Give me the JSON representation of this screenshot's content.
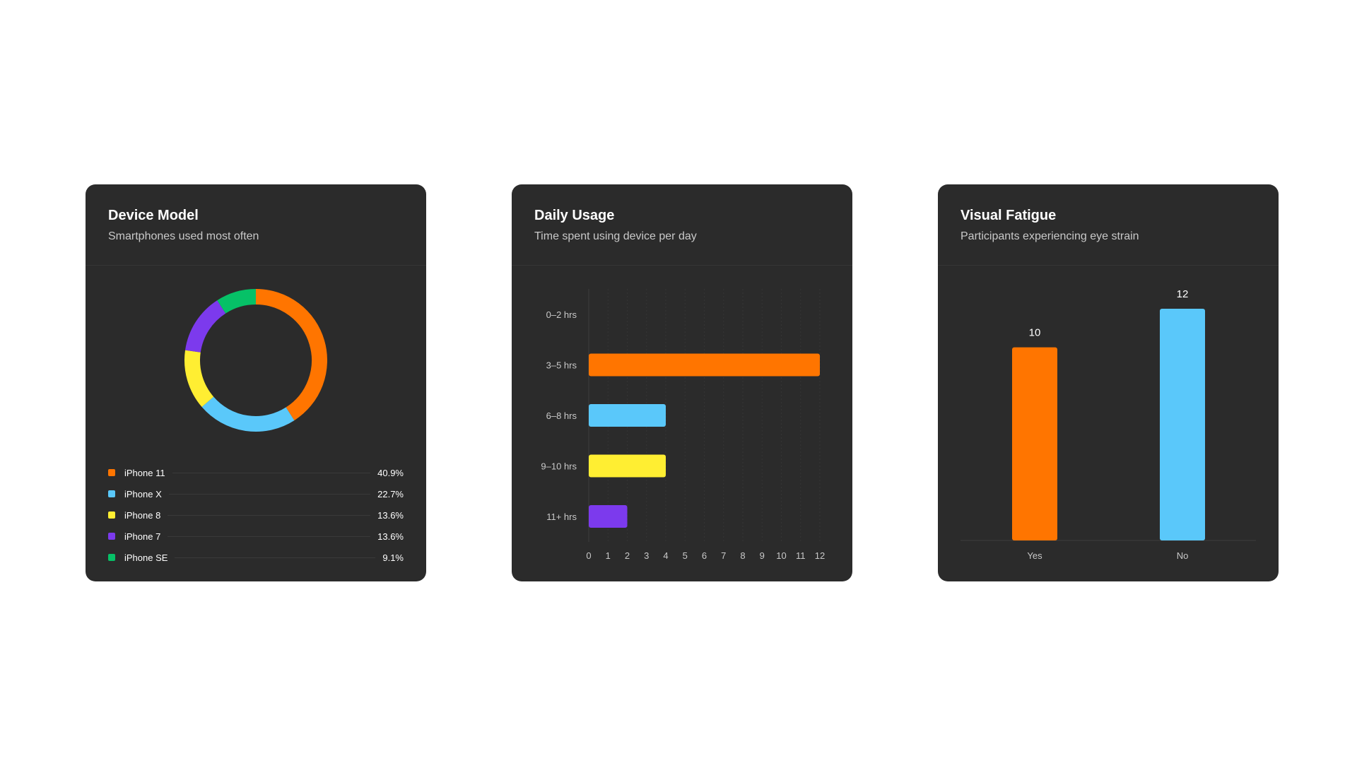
{
  "cards": {
    "device": {
      "title": "Device Model",
      "subtitle": "Smartphones used most often"
    },
    "usage": {
      "title": "Daily Usage",
      "subtitle": "Time spent using device per day"
    },
    "fatigue": {
      "title": "Visual Fatigue",
      "subtitle": "Participants experiencing eye strain"
    }
  },
  "chart_data": [
    {
      "type": "pie",
      "title": "Device Model",
      "subtitle": "Smartphones used most often",
      "donut": true,
      "legend": "bottom",
      "slices": [
        {
          "label": "iPhone 11",
          "value": 40.9,
          "display": "40.9%",
          "color": "#ff7500"
        },
        {
          "label": "iPhone X",
          "value": 22.7,
          "display": "22.7%",
          "color": "#5ac8fa"
        },
        {
          "label": "iPhone 8",
          "value": 13.6,
          "display": "13.6%",
          "color": "#ffee32"
        },
        {
          "label": "iPhone 7",
          "value": 13.6,
          "display": "13.6%",
          "color": "#7c3aed"
        },
        {
          "label": "iPhone SE",
          "value": 9.1,
          "display": "9.1%",
          "color": "#06c167"
        }
      ]
    },
    {
      "type": "bar",
      "orientation": "horizontal",
      "title": "Daily Usage",
      "subtitle": "Time spent using device per day",
      "categories": [
        "0–2 hrs",
        "3–5 hrs",
        "6–8 hrs",
        "9–10 hrs",
        "11+ hrs"
      ],
      "values": [
        0,
        12,
        4,
        4,
        2
      ],
      "colors": [
        "#ff7500",
        "#ff7500",
        "#5ac8fa",
        "#ffee32",
        "#7c3aed"
      ],
      "xlim": [
        0,
        12
      ],
      "xticks": [
        "0",
        "1",
        "2",
        "3",
        "4",
        "5",
        "6",
        "7",
        "8",
        "9",
        "10",
        "11",
        "12"
      ],
      "grid": true
    },
    {
      "type": "bar",
      "orientation": "vertical",
      "title": "Visual Fatigue",
      "subtitle": "Participants experiencing eye strain",
      "categories": [
        "Yes",
        "No"
      ],
      "values": [
        10,
        12
      ],
      "labels": [
        "10",
        "12"
      ],
      "colors": [
        "#ff7500",
        "#5ac8fa"
      ],
      "ylim": [
        0,
        12
      ]
    }
  ]
}
